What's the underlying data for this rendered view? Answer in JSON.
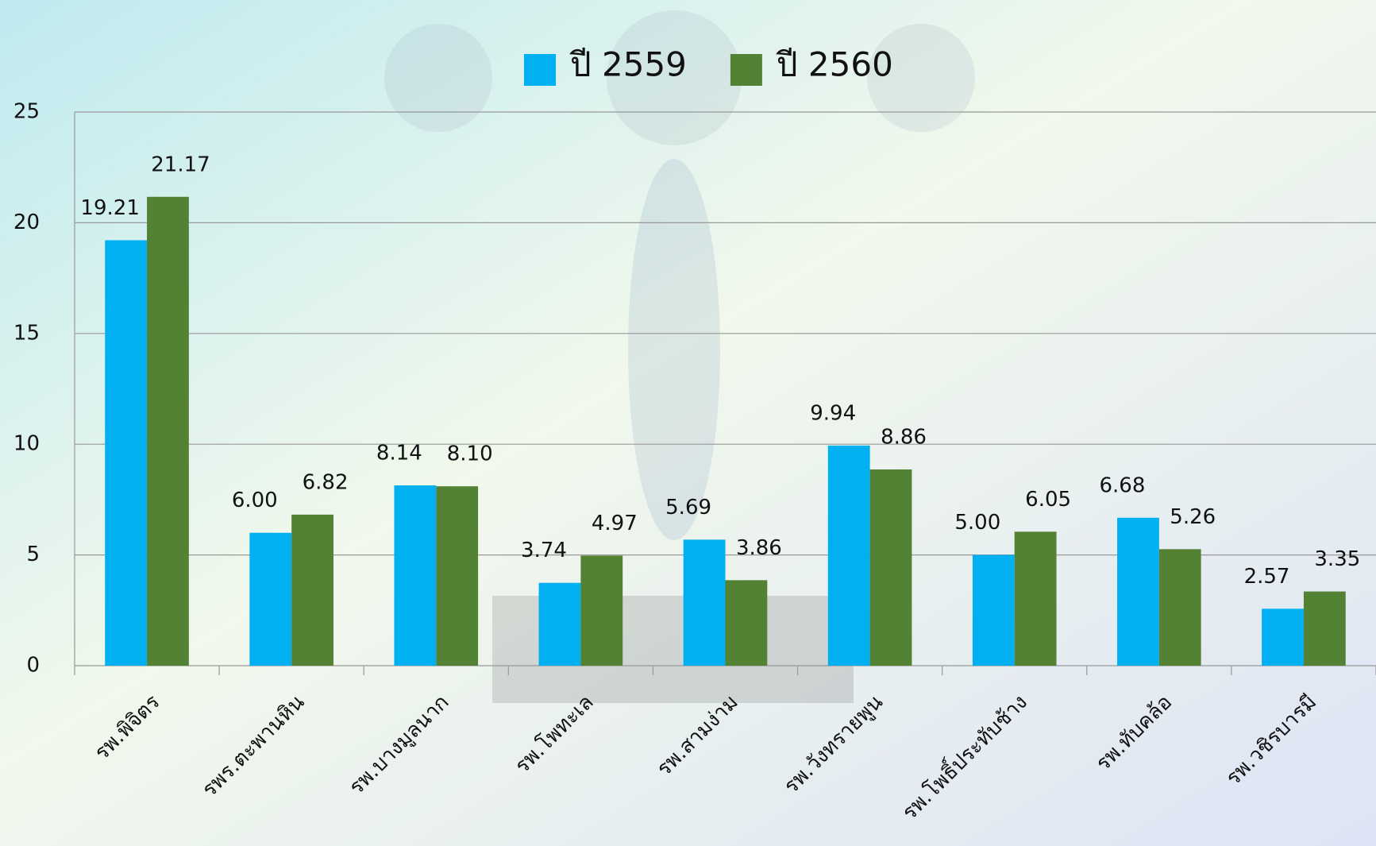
{
  "chart_data": {
    "type": "bar",
    "categories": [
      "รพ.พิจิตร",
      "รพร.ตะพานหิน",
      "รพ.บางมูลนาก",
      "รพ.โพทะเล",
      "รพ.สามง่าม",
      "รพ.วังทรายพูน",
      "รพ.โพธิ์ประทับช้าง",
      "รพ.ทับคล้อ",
      "รพ.วชิรบารมี"
    ],
    "series": [
      {
        "name": "ปี 2559",
        "color": "#00b0f0",
        "values": [
          19.21,
          6.0,
          8.14,
          3.74,
          5.69,
          9.94,
          5.0,
          6.68,
          2.57
        ],
        "value_labels": [
          "19.21",
          "6.00",
          "8.14",
          "3.74",
          "5.69",
          "9.94",
          "5.00",
          "6.68",
          "2.57"
        ]
      },
      {
        "name": "ปี 2560",
        "color": "#548235",
        "values": [
          21.17,
          6.82,
          8.1,
          4.97,
          3.86,
          8.86,
          6.05,
          5.26,
          3.35
        ],
        "value_labels": [
          "21.17",
          "6.82",
          "8.10",
          "4.97",
          "3.86",
          "8.86",
          "6.05",
          "5.26",
          "3.35"
        ]
      }
    ],
    "ylim": [
      0,
      25
    ],
    "yticks": [
      0,
      5,
      10,
      15,
      20,
      25
    ],
    "grid": true,
    "legend": "top"
  }
}
